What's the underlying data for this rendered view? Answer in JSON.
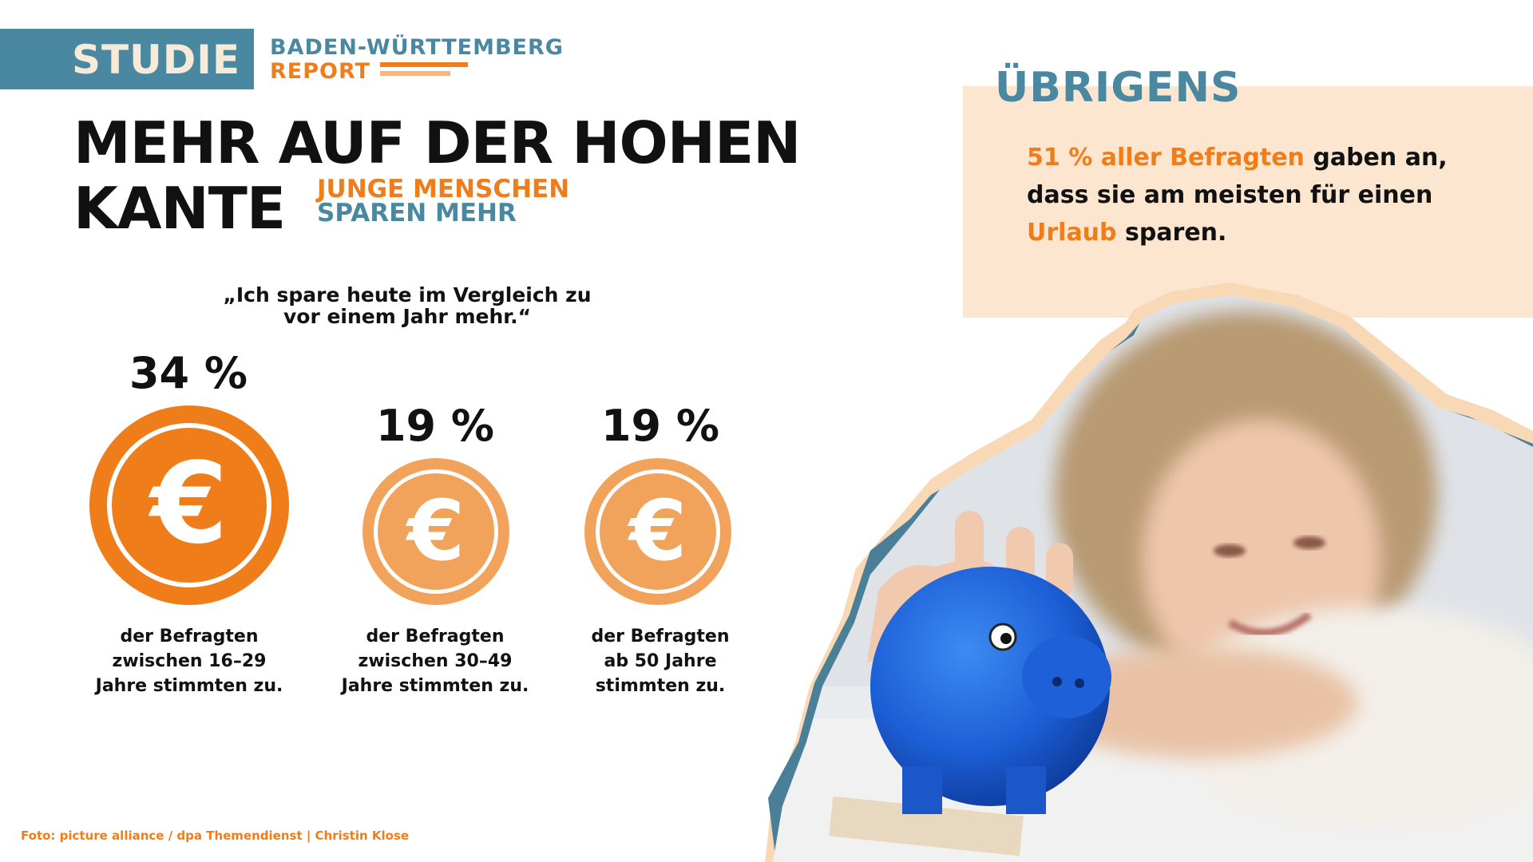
{
  "header": {
    "badge": "STUDIE",
    "report_line1": "BADEN-WÜRTTEMBERG",
    "report_line2": "REPORT"
  },
  "headline": {
    "line1": "MEHR AUF DER HOHEN",
    "line2": "KANTE",
    "sub_line1": "JUNGE MENSCHEN",
    "sub_line2": "SPAREN MEHR"
  },
  "quote": {
    "line1": "„Ich spare heute im Vergleich zu",
    "line2": "vor einem Jahr mehr.“"
  },
  "stats": [
    {
      "value": "34 %",
      "caption_line1": "der Befragten",
      "caption_line2": "zwischen 16–29",
      "caption_line3": "Jahre stimmten zu.",
      "color": "#ee7d1a"
    },
    {
      "value": "19 %",
      "caption_line1": "der Befragten",
      "caption_line2": "zwischen 30–49",
      "caption_line3": "Jahre stimmten zu.",
      "color": "#f1a35c"
    },
    {
      "value": "19 %",
      "caption_line1": "der Befragten",
      "caption_line2": "ab 50 Jahre",
      "caption_line3": "stimmten zu.",
      "color": "#f1a35c"
    }
  ],
  "coin_symbol": "€",
  "sidebar": {
    "heading": "ÜBRIGENS",
    "text_hl1": "51 % aller Befragten",
    "text_part1": " gaben an, dass sie am meisten für einen ",
    "text_hl2": "Urlaub",
    "text_part2": " sparen."
  },
  "credit": "Foto: picture alliance / dpa Themendienst | Christin Klose",
  "colors": {
    "blue": "#4a88a2",
    "orange": "#ee7d1a",
    "light_orange": "#f1a35c",
    "cream": "#fce6cf"
  }
}
